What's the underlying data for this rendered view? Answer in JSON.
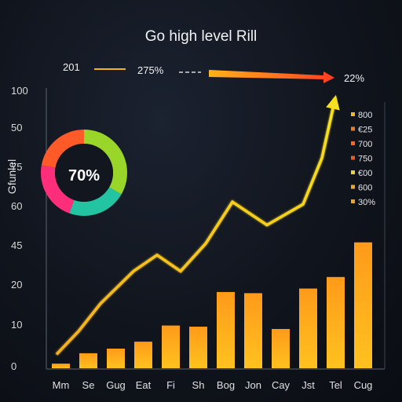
{
  "chart_data": {
    "type": "bar",
    "title": "Go high level Rill",
    "ylabel": "Gfunlel",
    "xlabel": "",
    "ylim_ticks": [
      "0",
      "10",
      "20",
      "45",
      "60",
      "75",
      "50",
      "100"
    ],
    "categories": [
      "Mm",
      "Se",
      "Gug",
      "Eat",
      "Fi",
      "Sh",
      "Bog",
      "Jon",
      "Cay",
      "Jst",
      "Tel",
      "Cug"
    ],
    "series": [
      {
        "kind": "bar",
        "values": [
          2,
          6.5,
          8.5,
          11.5,
          18.5,
          18,
          33,
          32.5,
          17,
          34.5,
          39.5,
          54.5
        ]
      },
      {
        "kind": "line",
        "values": [
          6,
          16,
          28,
          42,
          49,
          42,
          54,
          72,
          62,
          71,
          91,
          117
        ],
        "color": "#f4d31c"
      }
    ],
    "top_annotations": {
      "left_value": "201",
      "middle_value": "275%",
      "right_value": "22%"
    },
    "donut": {
      "label": "70%",
      "value": 0.7
    },
    "legend": {
      "placement": "right",
      "entries": [
        "800",
        "€25",
        "700",
        "750",
        "€00",
        "600",
        "30%"
      ],
      "colors": [
        "#f5b81c",
        "#f07a22",
        "#ef6a24",
        "#ea5a26",
        "#e8d42a",
        "#f0a82a",
        "#f2a02c"
      ]
    },
    "grid": false,
    "colors": {
      "bar_top": "#ff9a1a",
      "bar_bottom": "#ffbf1f",
      "line": "#f4d31c",
      "axis": "#6a7280"
    }
  }
}
